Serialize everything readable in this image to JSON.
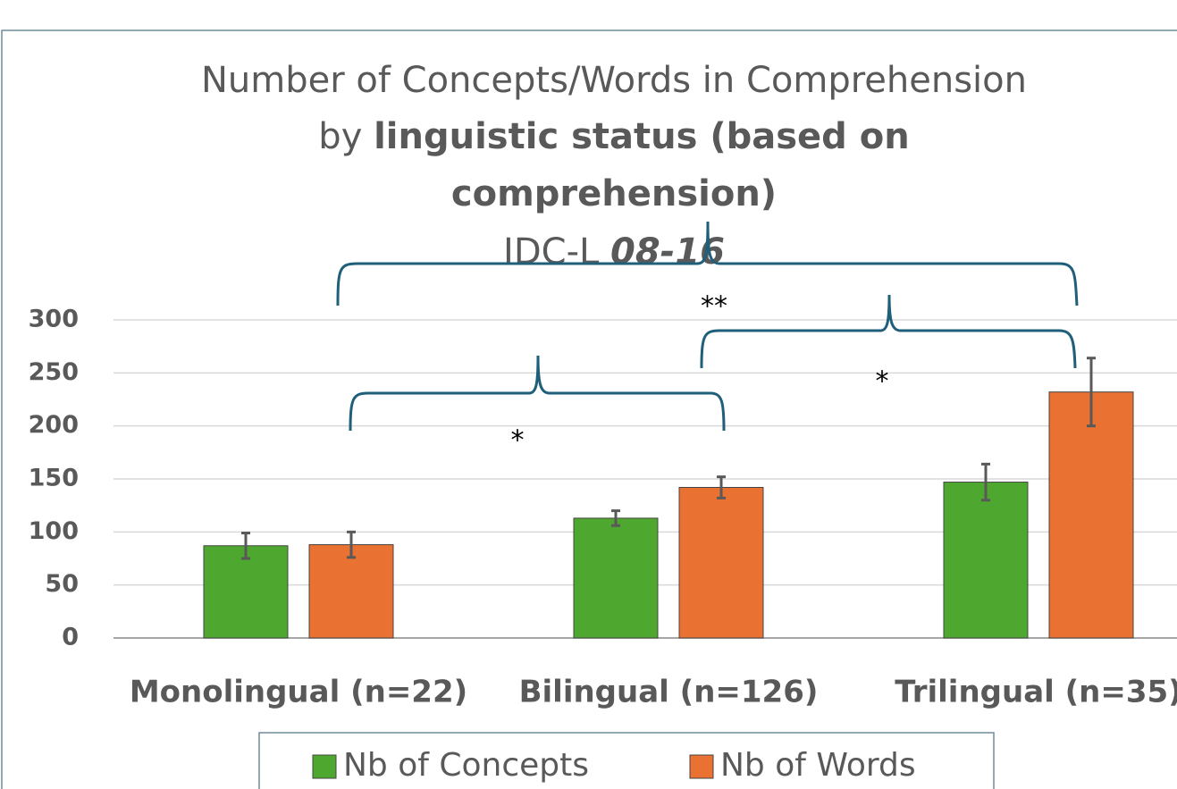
{
  "chart_data": {
    "type": "bar",
    "title_lines": [
      [
        {
          "text": "Number of Concepts/Words in Comprehension",
          "bold": false,
          "italic": false
        }
      ],
      [
        {
          "text": "by  ",
          "bold": false,
          "italic": false
        },
        {
          "text": "linguistic status (based on",
          "bold": true,
          "italic": false
        }
      ],
      [
        {
          "text": "comprehension)",
          "bold": true,
          "italic": false
        }
      ],
      [
        {
          "text": "IDC-L ",
          "bold": false,
          "italic": false
        },
        {
          "text": "08-16",
          "bold": true,
          "italic": true
        }
      ]
    ],
    "categories": [
      "Monolingual (n=22)",
      "Bilingual (n=126)",
      "Trilingual (n=35)"
    ],
    "series": [
      {
        "name": "Nb of Concepts",
        "color": "#4ea72e",
        "values": [
          87,
          113,
          147
        ],
        "errors": [
          12,
          7,
          17
        ]
      },
      {
        "name": "Nb of Words",
        "color": "#e97132",
        "values": [
          88,
          142,
          232
        ],
        "errors": [
          12,
          10,
          32
        ]
      }
    ],
    "ylim": [
      0,
      300
    ],
    "yticks": [
      0,
      50,
      100,
      150,
      200,
      250,
      300
    ],
    "grid": true,
    "legend": "bottom",
    "annotations": [
      "*",
      "**",
      "*"
    ]
  }
}
